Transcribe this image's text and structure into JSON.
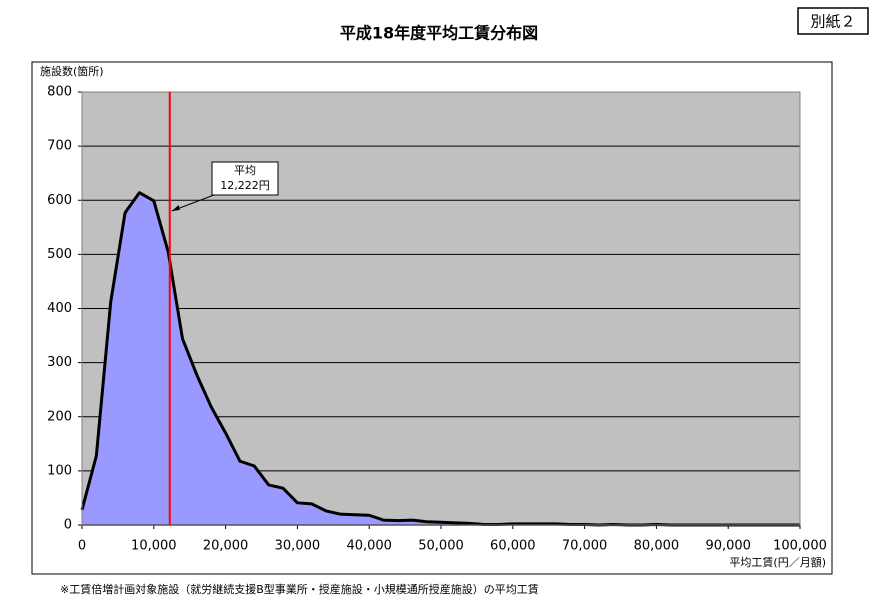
{
  "chart_data": {
    "type": "area",
    "title": "平成18年度平均工賃分布図",
    "tag": "別紙２",
    "y_label": "施設数(箇所)",
    "x_label": "平均工賃(円／月額)",
    "footnote": "※工賃倍増計画対象施設（就労継続支援B型事業所・授産施設・小規模通所授産施設）の平均工賃",
    "x": [
      0,
      2000,
      4000,
      6000,
      8000,
      10000,
      12000,
      14000,
      16000,
      18000,
      20000,
      22000,
      24000,
      26000,
      28000,
      30000,
      32000,
      34000,
      36000,
      38000,
      40000,
      42000,
      44000,
      46000,
      48000,
      50000,
      52000,
      54000,
      56000,
      58000,
      60000,
      62000,
      64000,
      66000,
      68000,
      70000,
      72000,
      74000,
      76000,
      78000,
      80000,
      82000,
      84000,
      86000,
      88000,
      90000,
      92000,
      94000,
      96000,
      98000,
      100000
    ],
    "values": [
      28,
      128,
      412,
      577,
      614,
      599,
      505,
      344,
      277,
      218,
      170,
      118,
      109,
      74,
      68,
      41,
      39,
      26,
      20,
      19,
      18,
      9,
      8,
      9,
      6,
      5,
      4,
      3,
      1,
      1,
      2,
      2,
      2,
      2,
      1,
      1,
      0,
      1,
      0,
      0,
      1,
      0,
      0,
      0,
      0,
      0,
      0,
      0,
      0,
      0,
      0
    ],
    "color": "#9999ff",
    "line_color": "#000000",
    "plot_background": "#c0c0c0",
    "mean": 12222,
    "mean_color": "#ff0000",
    "mean_label": [
      "平均",
      "12,222円"
    ],
    "xlim": [
      0,
      100000
    ],
    "xticks": [
      0,
      {
        "value": 10000,
        "label": "10,000"
      },
      {
        "value": 20000,
        "label": "20,000"
      },
      {
        "value": 30000,
        "label": "30,000"
      },
      {
        "value": 40000,
        "label": "40,000"
      },
      {
        "value": 50000,
        "label": "50,000"
      },
      {
        "value": 60000,
        "label": "60,000"
      },
      {
        "value": 70000,
        "label": "70,000"
      },
      {
        "value": 80000,
        "label": "80,000"
      },
      {
        "value": 90000,
        "label": "90,000"
      },
      {
        "value": 100000,
        "label": "100,000"
      }
    ],
    "ylim": [
      0,
      800
    ],
    "yticks": [
      0,
      100,
      200,
      300,
      400,
      500,
      600,
      700,
      800
    ],
    "grid": true
  }
}
